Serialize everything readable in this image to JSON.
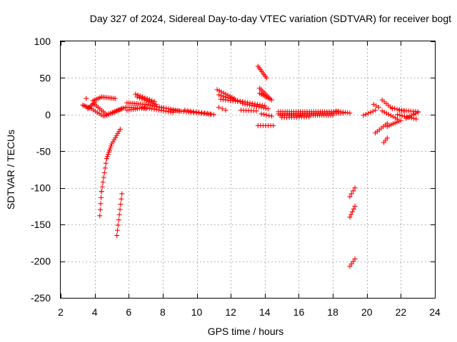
{
  "chart_data": {
    "type": "scatter",
    "title": "Day 327 of 2024, Sidereal Day-to-day VTEC variation (SDTVAR) for receiver bogt",
    "xlabel": "GPS time / hours",
    "ylabel": "SDTVAR / TECUs",
    "xlim": [
      2,
      24
    ],
    "ylim": [
      -250,
      100
    ],
    "xticks": [
      2,
      4,
      6,
      8,
      10,
      12,
      14,
      16,
      18,
      20,
      22,
      24
    ],
    "yticks": [
      -250,
      -200,
      -150,
      -100,
      -50,
      0,
      50,
      100
    ],
    "grid": true,
    "marker": "+",
    "series_color": "#ff0000",
    "segments": [
      {
        "x0": 3.3,
        "y0": 13,
        "x1": 3.7,
        "y1": 9,
        "n": 6
      },
      {
        "x0": 3.5,
        "y0": 22,
        "x1": 3.5,
        "y1": 22,
        "n": 1
      },
      {
        "x0": 3.6,
        "y0": 8,
        "x1": 4.0,
        "y1": 17,
        "n": 6
      },
      {
        "x0": 3.9,
        "y0": 19,
        "x1": 4.4,
        "y1": 24,
        "n": 6
      },
      {
        "x0": 4.4,
        "y0": 24,
        "x1": 5.2,
        "y1": 22,
        "n": 9
      },
      {
        "x0": 4.0,
        "y0": 14,
        "x1": 4.6,
        "y1": 2,
        "n": 7
      },
      {
        "x0": 3.8,
        "y0": 8,
        "x1": 4.5,
        "y1": -2,
        "n": 7
      },
      {
        "x0": 4.6,
        "y0": -2,
        "x1": 5.6,
        "y1": 8,
        "n": 10
      },
      {
        "x0": 4.7,
        "y0": 0,
        "x1": 5.8,
        "y1": 10,
        "n": 10
      },
      {
        "x0": 4.4,
        "y0": -105,
        "x1": 4.7,
        "y1": -60,
        "n": 8
      },
      {
        "x0": 4.7,
        "y0": -60,
        "x1": 5.0,
        "y1": -40,
        "n": 8
      },
      {
        "x0": 5.0,
        "y0": -40,
        "x1": 5.5,
        "y1": -20,
        "n": 8
      },
      {
        "x0": 4.3,
        "y0": -138,
        "x1": 4.4,
        "y1": -105,
        "n": 5
      },
      {
        "x0": 5.3,
        "y0": -165,
        "x1": 5.6,
        "y1": -108,
        "n": 9
      },
      {
        "x0": 5.9,
        "y0": 16,
        "x1": 6.9,
        "y1": 14,
        "n": 10
      },
      {
        "x0": 5.9,
        "y0": 10,
        "x1": 7.0,
        "y1": 8,
        "n": 10
      },
      {
        "x0": 5.9,
        "y0": 6,
        "x1": 6.5,
        "y1": 8,
        "n": 6
      },
      {
        "x0": 6.4,
        "y0": 28,
        "x1": 7.5,
        "y1": 18,
        "n": 9
      },
      {
        "x0": 6.5,
        "y0": 24,
        "x1": 7.6,
        "y1": 14,
        "n": 9
      },
      {
        "x0": 7.0,
        "y0": 14,
        "x1": 9.0,
        "y1": 5,
        "n": 16
      },
      {
        "x0": 6.8,
        "y0": 10,
        "x1": 8.6,
        "y1": 3,
        "n": 14
      },
      {
        "x0": 8.5,
        "y0": 6,
        "x1": 11.0,
        "y1": 0,
        "n": 18
      },
      {
        "x0": 9.3,
        "y0": 6,
        "x1": 10.8,
        "y1": 1,
        "n": 10
      },
      {
        "x0": 11.2,
        "y0": 34,
        "x1": 12.2,
        "y1": 22,
        "n": 9
      },
      {
        "x0": 11.3,
        "y0": 27,
        "x1": 12.4,
        "y1": 19,
        "n": 9
      },
      {
        "x0": 11.4,
        "y0": 21,
        "x1": 12.7,
        "y1": 17,
        "n": 10
      },
      {
        "x0": 12.4,
        "y0": 19,
        "x1": 14.0,
        "y1": 12,
        "n": 12
      },
      {
        "x0": 12.7,
        "y0": 15,
        "x1": 14.2,
        "y1": 8,
        "n": 12
      },
      {
        "x0": 11.3,
        "y0": 10,
        "x1": 11.7,
        "y1": 6,
        "n": 3
      },
      {
        "x0": 12.6,
        "y0": 6,
        "x1": 13.5,
        "y1": 5,
        "n": 7
      },
      {
        "x0": 13.6,
        "y0": 66,
        "x1": 14.1,
        "y1": 50,
        "n": 8
      },
      {
        "x0": 13.7,
        "y0": 36,
        "x1": 14.3,
        "y1": 22,
        "n": 8
      },
      {
        "x0": 13.7,
        "y0": 29,
        "x1": 14.4,
        "y1": 20,
        "n": 8
      },
      {
        "x0": 13.8,
        "y0": 1,
        "x1": 14.4,
        "y1": -2,
        "n": 5
      },
      {
        "x0": 13.6,
        "y0": -15,
        "x1": 14.5,
        "y1": -15,
        "n": 7
      },
      {
        "x0": 14.8,
        "y0": 4,
        "x1": 18.3,
        "y1": 4,
        "n": 28
      },
      {
        "x0": 14.8,
        "y0": 1,
        "x1": 18.6,
        "y1": 2,
        "n": 30
      },
      {
        "x0": 14.9,
        "y0": -1,
        "x1": 18.0,
        "y1": -1,
        "n": 25
      },
      {
        "x0": 15.0,
        "y0": -4,
        "x1": 16.6,
        "y1": -3,
        "n": 12
      },
      {
        "x0": 18.2,
        "y0": 5,
        "x1": 19.0,
        "y1": 2,
        "n": 7
      },
      {
        "x0": 19.0,
        "y0": -112,
        "x1": 19.3,
        "y1": -100,
        "n": 4
      },
      {
        "x0": 19.0,
        "y0": -140,
        "x1": 19.3,
        "y1": -125,
        "n": 5
      },
      {
        "x0": 19.0,
        "y0": -207,
        "x1": 19.3,
        "y1": -197,
        "n": 4
      },
      {
        "x0": 19.8,
        "y0": -1,
        "x1": 20.5,
        "y1": 6,
        "n": 6
      },
      {
        "x0": 20.4,
        "y0": 14,
        "x1": 20.7,
        "y1": 10,
        "n": 3
      },
      {
        "x0": 20.5,
        "y0": -25,
        "x1": 21.2,
        "y1": -12,
        "n": 7
      },
      {
        "x0": 20.9,
        "y0": 20,
        "x1": 21.5,
        "y1": 8,
        "n": 6
      },
      {
        "x0": 21.0,
        "y0": -38,
        "x1": 21.2,
        "y1": -32,
        "n": 3
      },
      {
        "x0": 20.9,
        "y0": 5,
        "x1": 21.8,
        "y1": -6,
        "n": 8
      },
      {
        "x0": 21.2,
        "y0": -16,
        "x1": 22.0,
        "y1": -8,
        "n": 8
      },
      {
        "x0": 21.5,
        "y0": 9,
        "x1": 22.2,
        "y1": 5,
        "n": 6
      },
      {
        "x0": 21.8,
        "y0": 0,
        "x1": 22.9,
        "y1": -6,
        "n": 9
      },
      {
        "x0": 21.9,
        "y0": 6,
        "x1": 23.0,
        "y1": 4,
        "n": 9
      },
      {
        "x0": 22.3,
        "y0": -5,
        "x1": 23.0,
        "y1": 3,
        "n": 7
      }
    ]
  }
}
